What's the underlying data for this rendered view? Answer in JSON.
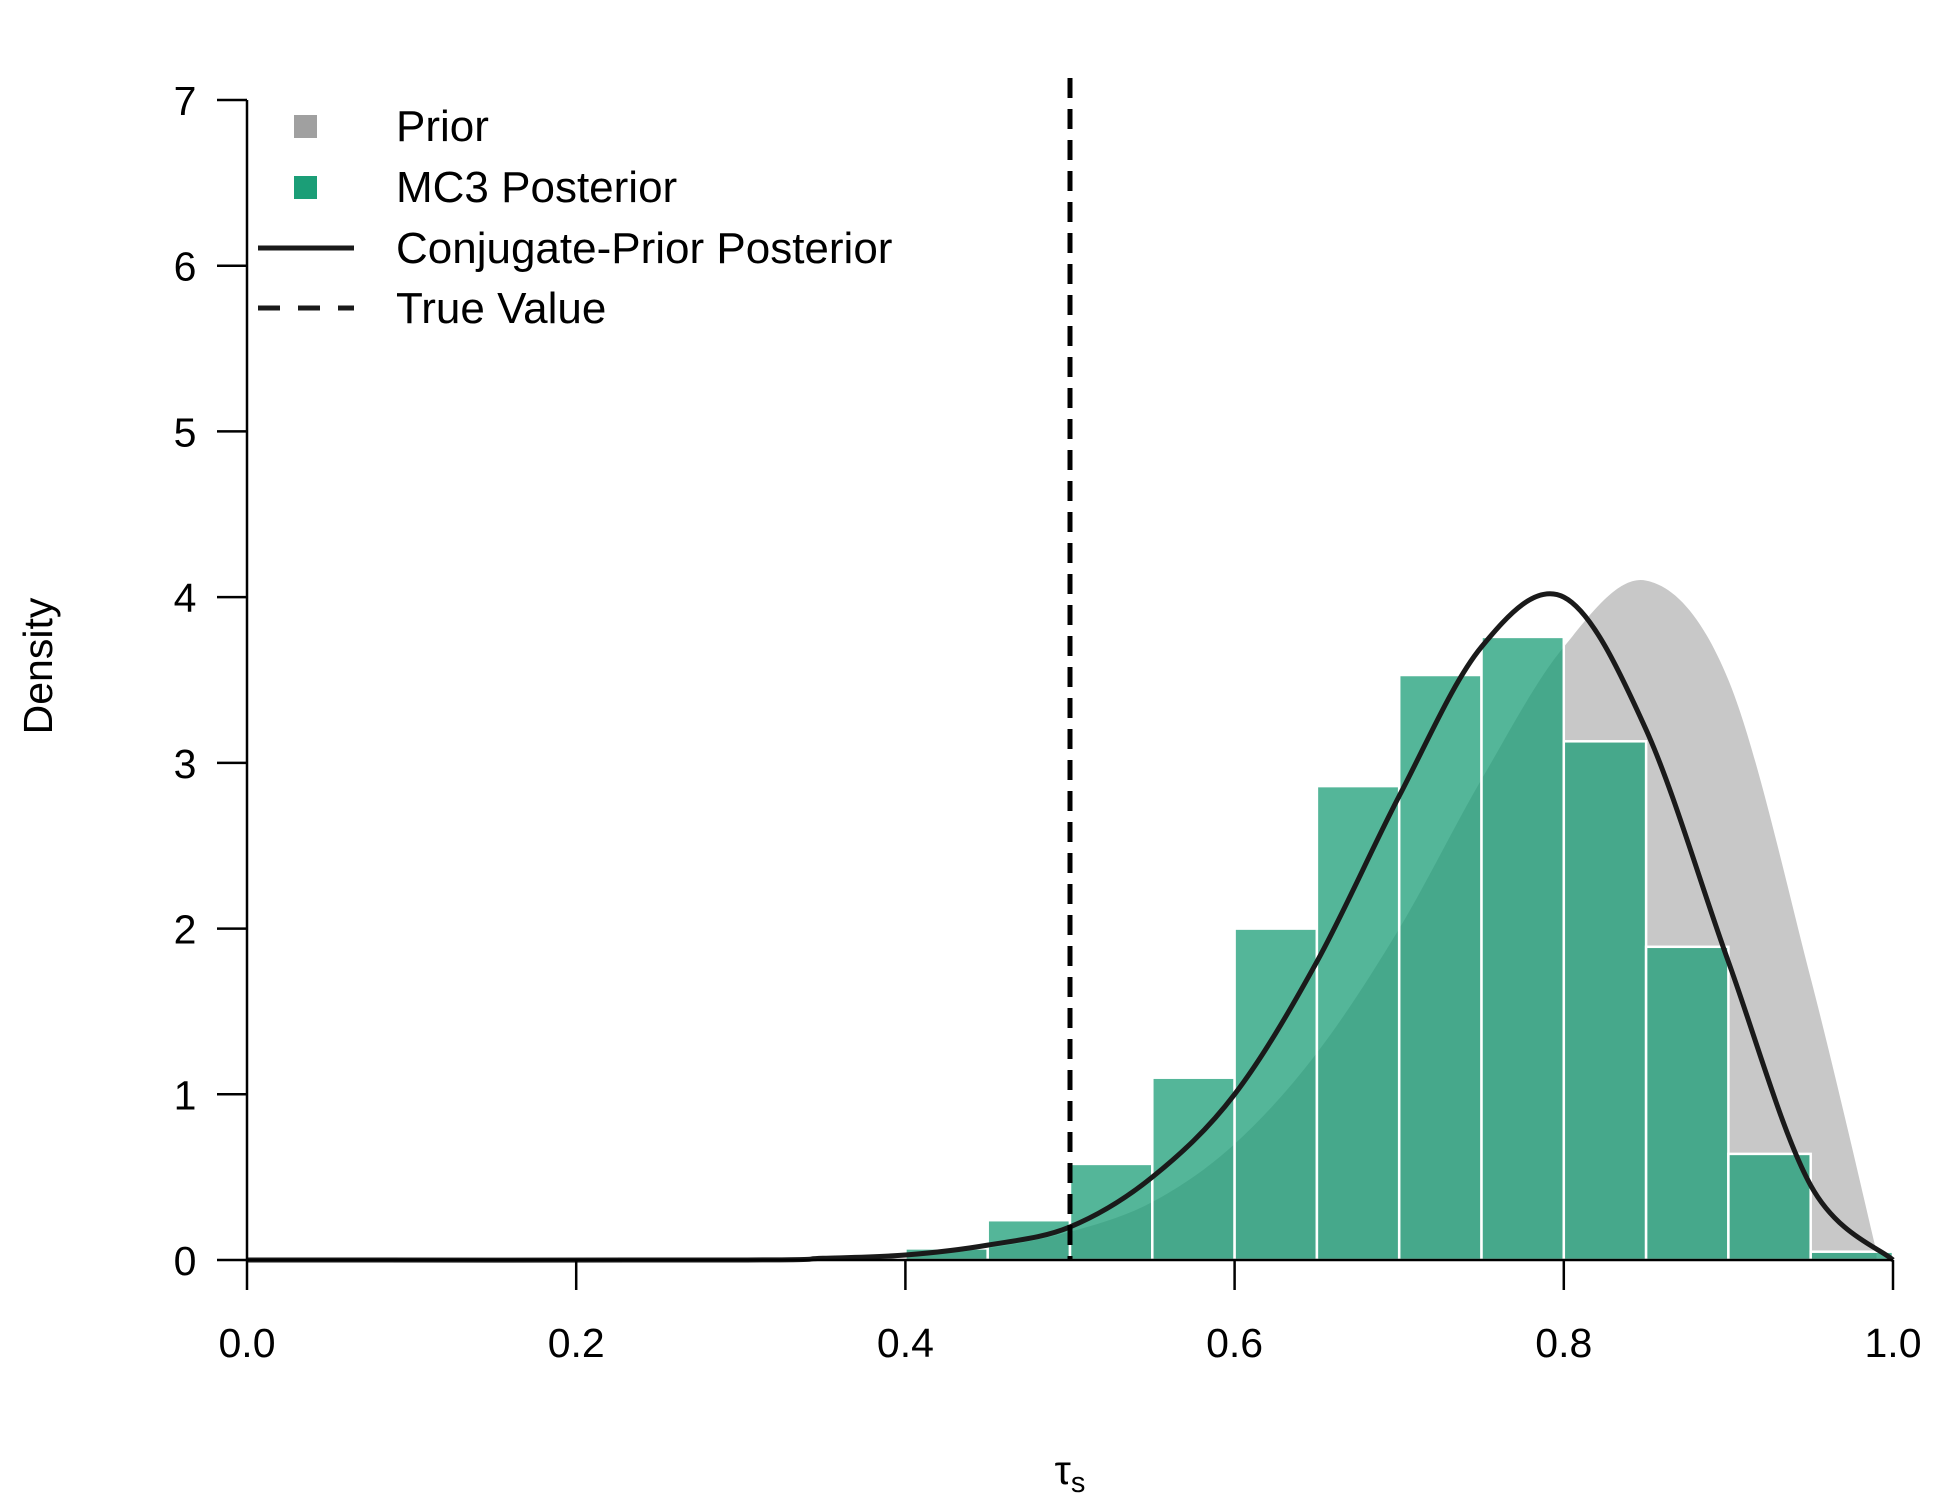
{
  "chart_data": {
    "type": "bar",
    "xlabel_main": "τ",
    "xlabel_sub": "s",
    "ylabel": "Density",
    "xlim": [
      0,
      1
    ],
    "ylim": [
      0,
      7
    ],
    "x_ticks": [
      "0.0",
      "0.2",
      "0.4",
      "0.6",
      "0.8",
      "1.0"
    ],
    "x_tick_values": [
      0,
      0.2,
      0.4,
      0.6,
      0.8,
      1.0
    ],
    "y_ticks": [
      "0",
      "1",
      "2",
      "3",
      "4",
      "5",
      "6",
      "7"
    ],
    "y_tick_values": [
      0,
      1,
      2,
      3,
      4,
      5,
      6,
      7
    ],
    "legend": {
      "placement": "top-left",
      "items": [
        {
          "label": "Prior",
          "kind": "square",
          "color": "#a0a0a0"
        },
        {
          "label": "MC3 Posterior",
          "kind": "square",
          "color": "#1b9e77"
        },
        {
          "label": "Conjugate-Prior Posterior",
          "kind": "line",
          "color": "#1a1a1a"
        },
        {
          "label": "True Value",
          "kind": "dashed",
          "color": "#1a1a1a"
        }
      ]
    },
    "prior": {
      "name": "Prior",
      "color": "#c8c8c8",
      "x": [
        0.4,
        0.45,
        0.5,
        0.55,
        0.6,
        0.65,
        0.7,
        0.75,
        0.8,
        0.85,
        0.9,
        0.95,
        0.99
      ],
      "y": [
        0.02,
        0.07,
        0.17,
        0.35,
        0.7,
        1.25,
        2.0,
        2.9,
        3.7,
        4.1,
        3.5,
        1.7,
        0.05
      ]
    },
    "histogram": {
      "name": "MC3 Posterior",
      "color": "#1b9e77",
      "bin_edges": [
        0.4,
        0.45,
        0.5,
        0.55,
        0.6,
        0.65,
        0.7,
        0.75,
        0.8,
        0.85,
        0.9,
        0.95,
        1.0
      ],
      "values": [
        0.07,
        0.24,
        0.58,
        1.1,
        2.0,
        2.86,
        3.53,
        3.76,
        3.13,
        1.89,
        0.64,
        0.05
      ]
    },
    "conjugate_posterior": {
      "name": "Conjugate-Prior Posterior",
      "color": "#1a1a1a",
      "x": [
        0.0,
        0.3,
        0.35,
        0.4,
        0.45,
        0.5,
        0.55,
        0.6,
        0.65,
        0.7,
        0.75,
        0.8,
        0.85,
        0.9,
        0.95,
        1.0
      ],
      "y": [
        0.0,
        0.0,
        0.01,
        0.03,
        0.09,
        0.2,
        0.5,
        1.0,
        1.8,
        2.8,
        3.7,
        4.0,
        3.2,
        1.8,
        0.45,
        0.0
      ]
    },
    "true_value": {
      "name": "True Value",
      "x": 0.5
    }
  }
}
